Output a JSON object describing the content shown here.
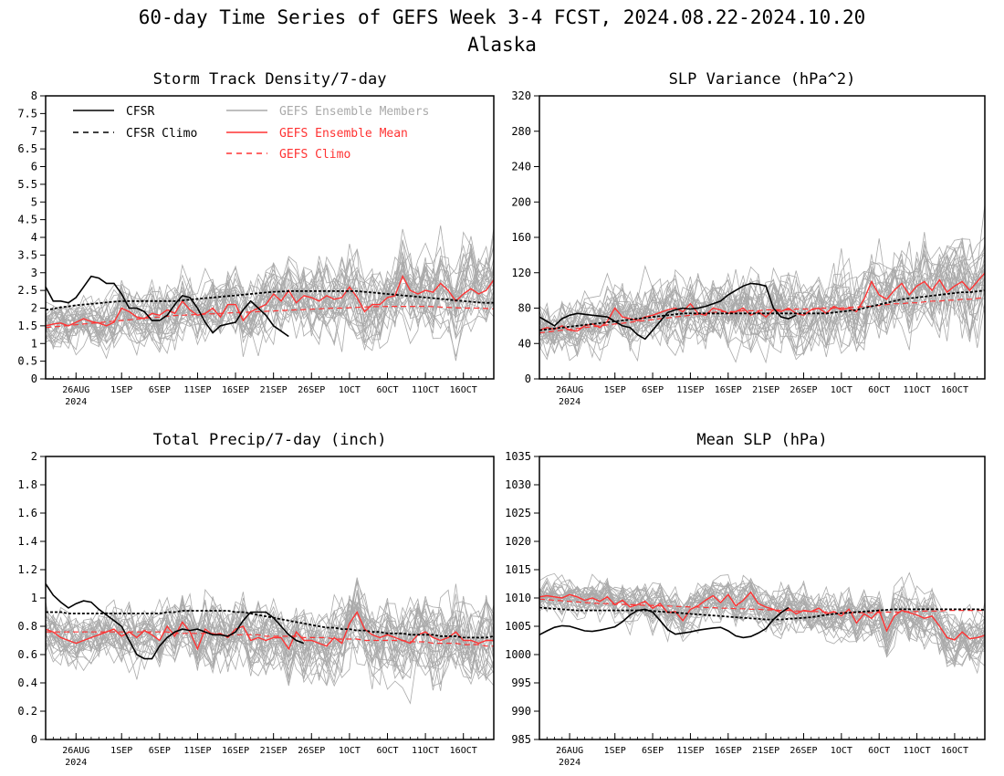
{
  "title": "60-day Time Series of GEFS Week 3-4 FCST, 2024.08.22-2024.10.20",
  "subtitle": "Alaska",
  "colors": {
    "cfsr": "#000000",
    "cfsr_climo": "#000000",
    "members": "#aaaaaa",
    "gefs_mean": "#ff3333",
    "gefs_climo": "#ff3333"
  },
  "legend": {
    "cfsr": "CFSR",
    "cfsr_climo": "CFSR Climo",
    "members": "GEFS Ensemble Members",
    "gefs_mean": "GEFS Ensemble Mean",
    "gefs_climo": "GEFS Climo"
  },
  "x_axis": {
    "start_date": "2024-08-22",
    "ndays": 60,
    "tick_labels": [
      "26AUG",
      "1SEP",
      "6SEP",
      "11SEP",
      "16SEP",
      "21SEP",
      "26SEP",
      "1OCT",
      "6OCT",
      "11OCT",
      "16OCT"
    ],
    "tick_days": [
      4,
      10,
      15,
      20,
      25,
      30,
      35,
      40,
      45,
      50,
      55
    ],
    "year_label": "2024"
  },
  "chart_data": [
    {
      "type": "line",
      "title": "Storm Track Density/7-day",
      "ylim": [
        0,
        8
      ],
      "yticks": [
        0,
        0.5,
        1,
        1.5,
        2,
        2.5,
        3,
        3.5,
        4,
        4.5,
        5,
        5.5,
        6,
        6.5,
        7,
        7.5,
        8
      ],
      "series": [
        {
          "name": "CFSR",
          "values": [
            2.6,
            2.2,
            2.2,
            2.15,
            2.3,
            2.6,
            2.9,
            2.85,
            2.7,
            2.7,
            2.4,
            2.0,
            2.0,
            1.9,
            1.65,
            1.65,
            1.8,
            2.1,
            2.35,
            2.3,
            2.0,
            1.6,
            1.3,
            1.5,
            1.55,
            1.6,
            1.95,
            2.2,
            2.0,
            1.8,
            1.5,
            1.35,
            1.2
          ]
        },
        {
          "name": "CFSR Climo",
          "values": [
            1.95,
            1.98,
            2.02,
            2.05,
            2.08,
            2.1,
            2.12,
            2.14,
            2.16,
            2.18,
            2.2,
            2.2,
            2.2,
            2.2,
            2.2,
            2.2,
            2.2,
            2.2,
            2.22,
            2.24,
            2.26,
            2.28,
            2.3,
            2.32,
            2.34,
            2.36,
            2.38,
            2.4,
            2.42,
            2.44,
            2.46,
            2.47,
            2.48,
            2.48,
            2.48,
            2.48,
            2.48,
            2.48,
            2.48,
            2.48,
            2.48,
            2.48,
            2.46,
            2.44,
            2.42,
            2.4,
            2.38,
            2.36,
            2.34,
            2.32,
            2.3,
            2.28,
            2.26,
            2.24,
            2.22,
            2.2,
            2.18,
            2.16,
            2.15,
            2.15
          ]
        },
        {
          "name": "GEFS Ensemble Mean",
          "values": [
            1.5,
            1.55,
            1.58,
            1.5,
            1.6,
            1.7,
            1.62,
            1.58,
            1.5,
            1.6,
            2.0,
            1.9,
            1.75,
            1.7,
            1.85,
            1.8,
            1.95,
            1.85,
            2.2,
            1.95,
            1.8,
            1.85,
            2.0,
            1.75,
            2.1,
            2.1,
            1.65,
            1.9,
            2.0,
            2.1,
            2.4,
            2.2,
            2.5,
            2.15,
            2.35,
            2.3,
            2.2,
            2.35,
            2.25,
            2.3,
            2.6,
            2.3,
            1.9,
            2.1,
            2.1,
            2.3,
            2.35,
            2.9,
            2.5,
            2.4,
            2.5,
            2.45,
            2.7,
            2.5,
            2.2,
            2.4,
            2.55,
            2.4,
            2.5,
            2.8
          ]
        },
        {
          "name": "GEFS Climo",
          "values": [
            1.45,
            1.47,
            1.49,
            1.51,
            1.53,
            1.55,
            1.57,
            1.59,
            1.61,
            1.63,
            1.65,
            1.67,
            1.69,
            1.71,
            1.73,
            1.75,
            1.77,
            1.79,
            1.8,
            1.81,
            1.82,
            1.83,
            1.84,
            1.85,
            1.86,
            1.87,
            1.88,
            1.89,
            1.9,
            1.91,
            1.92,
            1.93,
            1.94,
            1.95,
            1.96,
            1.97,
            1.98,
            1.99,
            2.0,
            2.0,
            2.01,
            2.02,
            2.03,
            2.04,
            2.04,
            2.05,
            2.05,
            2.05,
            2.05,
            2.05,
            2.05,
            2.04,
            2.03,
            2.02,
            2.01,
            2.0,
            2.0,
            2.0,
            1.99,
            1.98
          ]
        }
      ]
    },
    {
      "type": "line",
      "title": "SLP Variance (hPa^2)",
      "ylim": [
        0,
        320
      ],
      "yticks": [
        0,
        40,
        80,
        120,
        160,
        200,
        240,
        280,
        320
      ],
      "series": [
        {
          "name": "CFSR",
          "values": [
            70,
            65,
            60,
            68,
            72,
            74,
            73,
            72,
            71,
            70,
            65,
            60,
            58,
            50,
            45,
            55,
            65,
            75,
            78,
            80,
            79,
            80,
            82,
            85,
            88,
            95,
            100,
            105,
            108,
            107,
            105,
            80,
            70,
            68,
            72
          ]
        },
        {
          "name": "CFSR Climo",
          "values": [
            55,
            56,
            57,
            58,
            59,
            60,
            61,
            62,
            63,
            64,
            65,
            66,
            67,
            68,
            69,
            70,
            71,
            72,
            73,
            74,
            74,
            74,
            74,
            74,
            74,
            74,
            74,
            74,
            74,
            74,
            74,
            74,
            74,
            74,
            74,
            74,
            74,
            74,
            74,
            75,
            76,
            77,
            78,
            80,
            82,
            84,
            86,
            88,
            90,
            91,
            92,
            93,
            94,
            95,
            96,
            97,
            98,
            98,
            99,
            100
          ]
        },
        {
          "name": "GEFS Ensemble Mean",
          "values": [
            55,
            58,
            56,
            60,
            55,
            54,
            60,
            62,
            58,
            65,
            80,
            70,
            68,
            66,
            70,
            72,
            75,
            78,
            80,
            76,
            85,
            74,
            72,
            80,
            78,
            74,
            76,
            80,
            72,
            76,
            70,
            78,
            76,
            80,
            74,
            72,
            78,
            80,
            74,
            82,
            78,
            80,
            76,
            90,
            110,
            95,
            90,
            100,
            108,
            95,
            105,
            110,
            100,
            112,
            98,
            105,
            110,
            100,
            110,
            120
          ]
        },
        {
          "name": "GEFS Climo",
          "values": [
            52,
            53,
            54,
            55,
            56,
            57,
            58,
            59,
            60,
            61,
            62,
            63,
            64,
            65,
            66,
            67,
            68,
            69,
            70,
            71,
            72,
            73,
            74,
            75,
            76,
            76,
            76,
            77,
            77,
            77,
            78,
            78,
            78,
            78,
            79,
            79,
            79,
            80,
            80,
            80,
            80,
            81,
            81,
            82,
            82,
            83,
            84,
            85,
            85,
            86,
            86,
            87,
            88,
            88,
            89,
            89,
            90,
            90,
            91,
            92
          ]
        }
      ]
    },
    {
      "type": "line",
      "title": "Total Precip/7-day (inch)",
      "ylim": [
        0,
        2
      ],
      "yticks": [
        0,
        0.2,
        0.4,
        0.6,
        0.8,
        1,
        1.2,
        1.4,
        1.6,
        1.8,
        2
      ],
      "series": [
        {
          "name": "CFSR",
          "values": [
            1.1,
            1.02,
            0.97,
            0.93,
            0.96,
            0.98,
            0.97,
            0.92,
            0.88,
            0.84,
            0.8,
            0.7,
            0.6,
            0.57,
            0.57,
            0.66,
            0.72,
            0.76,
            0.78,
            0.77,
            0.78,
            0.76,
            0.74,
            0.74,
            0.73,
            0.76,
            0.84,
            0.9,
            0.9,
            0.9,
            0.86,
            0.8,
            0.74,
            0.7,
            0.68
          ]
        },
        {
          "name": "CFSR Climo",
          "values": [
            0.9,
            0.9,
            0.9,
            0.89,
            0.89,
            0.89,
            0.89,
            0.89,
            0.89,
            0.89,
            0.89,
            0.89,
            0.89,
            0.89,
            0.89,
            0.89,
            0.9,
            0.9,
            0.91,
            0.91,
            0.91,
            0.91,
            0.91,
            0.91,
            0.91,
            0.9,
            0.9,
            0.89,
            0.88,
            0.87,
            0.86,
            0.85,
            0.84,
            0.83,
            0.82,
            0.81,
            0.8,
            0.79,
            0.79,
            0.78,
            0.78,
            0.77,
            0.77,
            0.76,
            0.76,
            0.75,
            0.75,
            0.75,
            0.74,
            0.74,
            0.74,
            0.74,
            0.73,
            0.73,
            0.73,
            0.72,
            0.72,
            0.72,
            0.72,
            0.73
          ]
        },
        {
          "name": "GEFS Ensemble Mean",
          "values": [
            0.78,
            0.76,
            0.72,
            0.7,
            0.68,
            0.7,
            0.72,
            0.74,
            0.76,
            0.78,
            0.73,
            0.76,
            0.72,
            0.77,
            0.74,
            0.7,
            0.8,
            0.73,
            0.83,
            0.76,
            0.64,
            0.78,
            0.74,
            0.75,
            0.72,
            0.78,
            0.8,
            0.7,
            0.72,
            0.7,
            0.72,
            0.72,
            0.64,
            0.76,
            0.7,
            0.7,
            0.68,
            0.66,
            0.72,
            0.68,
            0.82,
            0.9,
            0.78,
            0.74,
            0.72,
            0.74,
            0.72,
            0.7,
            0.68,
            0.74,
            0.76,
            0.72,
            0.7,
            0.72,
            0.76,
            0.7,
            0.7,
            0.68,
            0.7,
            0.7
          ]
        },
        {
          "name": "GEFS Climo",
          "values": [
            0.76,
            0.76,
            0.76,
            0.76,
            0.76,
            0.76,
            0.76,
            0.76,
            0.76,
            0.76,
            0.76,
            0.76,
            0.76,
            0.76,
            0.76,
            0.76,
            0.76,
            0.75,
            0.75,
            0.75,
            0.75,
            0.75,
            0.75,
            0.74,
            0.74,
            0.74,
            0.74,
            0.74,
            0.74,
            0.73,
            0.73,
            0.73,
            0.73,
            0.73,
            0.72,
            0.72,
            0.72,
            0.72,
            0.71,
            0.71,
            0.71,
            0.71,
            0.7,
            0.7,
            0.7,
            0.7,
            0.7,
            0.7,
            0.69,
            0.69,
            0.69,
            0.68,
            0.68,
            0.68,
            0.68,
            0.67,
            0.67,
            0.67,
            0.66,
            0.66
          ]
        }
      ]
    },
    {
      "type": "line",
      "title": "Mean SLP (hPa)",
      "ylim": [
        985,
        1035
      ],
      "yticks": [
        985,
        990,
        995,
        1000,
        1005,
        1010,
        1015,
        1020,
        1025,
        1030,
        1035
      ],
      "series": [
        {
          "name": "CFSR",
          "values": [
            1003.5,
            1004.2,
            1004.8,
            1005.1,
            1005.0,
            1004.6,
            1004.2,
            1004.1,
            1004.3,
            1004.6,
            1004.9,
            1005.8,
            1007.0,
            1007.8,
            1008.0,
            1007.5,
            1006.0,
            1004.4,
            1003.6,
            1003.8,
            1004.0,
            1004.3,
            1004.5,
            1004.7,
            1004.8,
            1004.2,
            1003.3,
            1003.0,
            1003.2,
            1003.8,
            1004.6,
            1006.2,
            1007.4,
            1008.3
          ]
        },
        {
          "name": "CFSR Climo",
          "values": [
            1008.3,
            1008.2,
            1008.1,
            1008.0,
            1007.9,
            1007.8,
            1007.8,
            1007.8,
            1007.8,
            1007.8,
            1007.8,
            1007.8,
            1007.8,
            1007.8,
            1007.8,
            1007.7,
            1007.6,
            1007.5,
            1007.4,
            1007.3,
            1007.2,
            1007.1,
            1007.0,
            1006.9,
            1006.8,
            1006.7,
            1006.6,
            1006.5,
            1006.4,
            1006.3,
            1006.2,
            1006.2,
            1006.2,
            1006.3,
            1006.4,
            1006.5,
            1006.6,
            1006.8,
            1007.0,
            1007.2,
            1007.3,
            1007.4,
            1007.5,
            1007.6,
            1007.7,
            1007.8,
            1007.9,
            1008.0,
            1008.0,
            1008.0,
            1008.0,
            1008.0,
            1008.0,
            1008.0,
            1008.0,
            1008.0,
            1008.0,
            1008.0,
            1008.0,
            1007.9
          ]
        },
        {
          "name": "GEFS Ensemble Mean",
          "values": [
            1010.2,
            1010.4,
            1010.2,
            1010.0,
            1010.6,
            1010.2,
            1009.6,
            1010.0,
            1009.4,
            1010.2,
            1008.8,
            1009.6,
            1008.4,
            1008.8,
            1009.4,
            1008.2,
            1009.0,
            1007.4,
            1007.6,
            1006.0,
            1008.0,
            1008.6,
            1009.6,
            1010.4,
            1009.2,
            1010.6,
            1008.6,
            1009.6,
            1011.0,
            1009.0,
            1008.4,
            1008.0,
            1007.4,
            1008.2,
            1007.2,
            1007.8,
            1007.6,
            1008.2,
            1007.2,
            1007.6,
            1006.8,
            1008.0,
            1005.6,
            1007.2,
            1006.4,
            1007.8,
            1004.2,
            1006.8,
            1007.8,
            1007.4,
            1007.0,
            1006.4,
            1006.8,
            1005.0,
            1003.0,
            1002.6,
            1004.0,
            1002.8,
            1003.0,
            1003.4
          ]
        },
        {
          "name": "GEFS Climo",
          "values": [
            1009.8,
            1009.7,
            1009.6,
            1009.5,
            1009.4,
            1009.3,
            1009.2,
            1009.1,
            1009.0,
            1009.0,
            1008.9,
            1008.9,
            1008.8,
            1008.8,
            1008.7,
            1008.7,
            1008.6,
            1008.6,
            1008.5,
            1008.5,
            1008.4,
            1008.4,
            1008.3,
            1008.3,
            1008.2,
            1008.2,
            1008.1,
            1008.1,
            1008.0,
            1008.0,
            1007.9,
            1007.9,
            1007.8,
            1007.8,
            1007.7,
            1007.7,
            1007.6,
            1007.6,
            1007.5,
            1007.5,
            1007.4,
            1007.4,
            1007.4,
            1007.4,
            1007.4,
            1007.4,
            1007.5,
            1007.5,
            1007.5,
            1007.6,
            1007.6,
            1007.7,
            1007.7,
            1007.7,
            1007.8,
            1007.8,
            1007.8,
            1007.8,
            1007.8,
            1007.8
          ]
        }
      ]
    }
  ]
}
